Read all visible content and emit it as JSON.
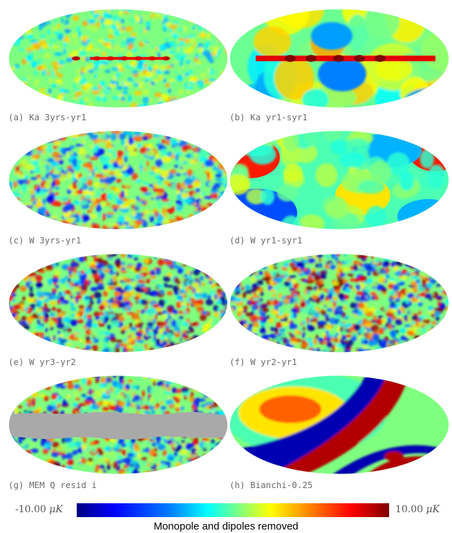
{
  "panels": [
    {
      "id": "a",
      "caption": "(a) Ka 3yrs-yr1",
      "kind": "noise-galaxy-thin"
    },
    {
      "id": "b",
      "caption": "(b) Ka yr1-syr1",
      "kind": "smooth-galaxy"
    },
    {
      "id": "c",
      "caption": "(c) W 3yrs-yr1",
      "kind": "noise-med"
    },
    {
      "id": "d",
      "caption": "(d) W yr1-syr1",
      "kind": "large-scale"
    },
    {
      "id": "e",
      "caption": "(e) W yr3-yr2",
      "kind": "noise-strong"
    },
    {
      "id": "f",
      "caption": "(f) W yr2-yr1",
      "kind": "noise-strong"
    },
    {
      "id": "g",
      "caption": "(g) MEM Q resid i",
      "kind": "masked"
    },
    {
      "id": "h",
      "caption": "(h) Bianchi-0.25",
      "kind": "bianchi"
    }
  ],
  "colorbar": {
    "min_label": "-10.00",
    "max_label": "10.00",
    "unit": "μK",
    "title": "Monopole and dipoles removed"
  },
  "colors": {
    "mask_gray": "#a9a9a9",
    "scale": [
      "#00007f",
      "#0000ff",
      "#007fff",
      "#00ffff",
      "#7fff7f",
      "#ffff00",
      "#ff7f00",
      "#ff0000",
      "#7f0000"
    ]
  }
}
